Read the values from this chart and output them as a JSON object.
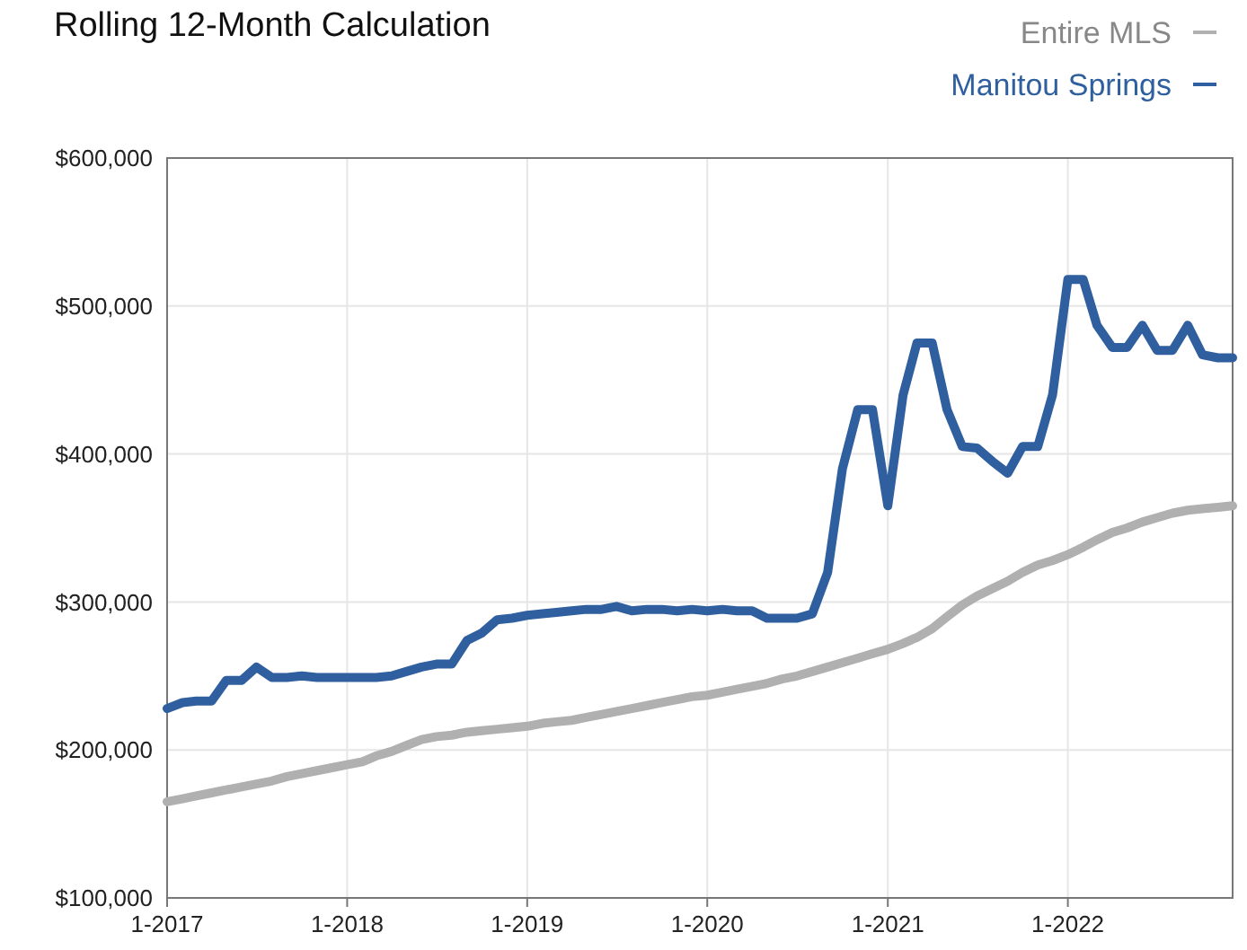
{
  "chart_data": {
    "type": "line",
    "title": "Rolling 12-Month Calculation",
    "x": [
      "2017-01",
      "2017-02",
      "2017-03",
      "2017-04",
      "2017-05",
      "2017-06",
      "2017-07",
      "2017-08",
      "2017-09",
      "2017-10",
      "2017-11",
      "2017-12",
      "2018-01",
      "2018-02",
      "2018-03",
      "2018-04",
      "2018-05",
      "2018-06",
      "2018-07",
      "2018-08",
      "2018-09",
      "2018-10",
      "2018-11",
      "2018-12",
      "2019-01",
      "2019-02",
      "2019-03",
      "2019-04",
      "2019-05",
      "2019-06",
      "2019-07",
      "2019-08",
      "2019-09",
      "2019-10",
      "2019-11",
      "2019-12",
      "2020-01",
      "2020-02",
      "2020-03",
      "2020-04",
      "2020-05",
      "2020-06",
      "2020-07",
      "2020-08",
      "2020-09",
      "2020-10",
      "2020-11",
      "2020-12",
      "2021-01",
      "2021-02",
      "2021-03",
      "2021-04",
      "2021-05",
      "2021-06",
      "2021-07",
      "2021-08",
      "2021-09",
      "2021-10",
      "2021-11",
      "2021-12",
      "2022-01",
      "2022-02",
      "2022-03",
      "2022-04",
      "2022-05",
      "2022-06",
      "2022-07",
      "2022-08",
      "2022-09",
      "2022-10",
      "2022-11",
      "2022-12"
    ],
    "series": [
      {
        "name": "Entire MLS",
        "color": "#b0b0b0",
        "values": [
          165000,
          167000,
          169000,
          171000,
          173000,
          175000,
          177000,
          179000,
          182000,
          184000,
          186000,
          188000,
          190000,
          192000,
          196000,
          199000,
          203000,
          207000,
          209000,
          210000,
          212000,
          213000,
          214000,
          215000,
          216000,
          218000,
          219000,
          220000,
          222000,
          224000,
          226000,
          228000,
          230000,
          232000,
          234000,
          236000,
          237000,
          239000,
          241000,
          243000,
          245000,
          248000,
          250000,
          253000,
          256000,
          259000,
          262000,
          265000,
          268000,
          272000,
          276000,
          282000,
          290000,
          298000,
          304000,
          309000,
          314000,
          320000,
          325000,
          328000,
          332000,
          337000,
          342000,
          347000,
          350000,
          354000,
          357000,
          360000,
          362000,
          363000,
          364000,
          365000
        ]
      },
      {
        "name": "Manitou Springs",
        "color": "#2f5f9e",
        "values": [
          228000,
          232000,
          233000,
          233000,
          247000,
          247000,
          256000,
          249000,
          249000,
          250000,
          249000,
          249000,
          249000,
          249000,
          249000,
          250000,
          253000,
          256000,
          258000,
          258000,
          274000,
          279000,
          288000,
          289000,
          291000,
          292000,
          293000,
          294000,
          295000,
          295000,
          297000,
          294000,
          295000,
          295000,
          294000,
          295000,
          294000,
          295000,
          294000,
          294000,
          289000,
          289000,
          289000,
          292000,
          320000,
          390000,
          430000,
          430000,
          365000,
          440000,
          475000,
          475000,
          430000,
          405000,
          404000,
          395000,
          387000,
          405000,
          405000,
          440000,
          518000,
          518000,
          487000,
          472000,
          472000,
          487000,
          470000,
          470000,
          487000,
          467000,
          465000,
          465000
        ]
      }
    ],
    "xlim": [
      "2017-01",
      "2022-12"
    ],
    "xticks": [
      {
        "value": "2017-01",
        "label": "1-2017"
      },
      {
        "value": "2018-01",
        "label": "1-2018"
      },
      {
        "value": "2019-01",
        "label": "1-2019"
      },
      {
        "value": "2020-01",
        "label": "1-2020"
      },
      {
        "value": "2021-01",
        "label": "1-2021"
      },
      {
        "value": "2022-01",
        "label": "1-2022"
      }
    ],
    "ylim": [
      100000,
      600000
    ],
    "yticks": [
      {
        "value": 100000,
        "label": "$100,000"
      },
      {
        "value": 200000,
        "label": "$200,000"
      },
      {
        "value": 300000,
        "label": "$300,000"
      },
      {
        "value": 400000,
        "label": "$400,000"
      },
      {
        "value": 500000,
        "label": "$500,000"
      },
      {
        "value": 600000,
        "label": "$600,000"
      }
    ],
    "grid": true,
    "legend": "top right",
    "marker": "none",
    "line_style": "solid"
  }
}
